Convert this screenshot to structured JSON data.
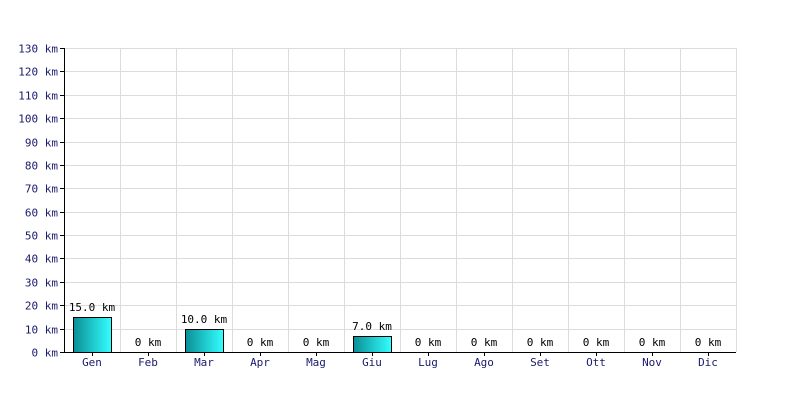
{
  "chart_data": {
    "type": "bar",
    "title": "",
    "xlabel": "",
    "ylabel": "",
    "unit": "km",
    "categories": [
      "Gen",
      "Feb",
      "Mar",
      "Apr",
      "Mag",
      "Giu",
      "Lug",
      "Ago",
      "Set",
      "Ott",
      "Nov",
      "Dic"
    ],
    "values": [
      15.0,
      0,
      10.0,
      0,
      0,
      7.0,
      0,
      0,
      0,
      0,
      0,
      0
    ],
    "data_labels": [
      "15.0 km",
      "0 km",
      "10.0 km",
      "0 km",
      "0 km",
      "7.0 km",
      "0 km",
      "0 km",
      "0 km",
      "0 km",
      "0 km",
      "0 km"
    ],
    "y_ticks": [
      0,
      10,
      20,
      30,
      40,
      50,
      60,
      70,
      80,
      90,
      100,
      110,
      120,
      130
    ],
    "y_tick_labels": [
      "0 km",
      "10 km",
      "20 km",
      "30 km",
      "40 km",
      "50 km",
      "60 km",
      "70 km",
      "80 km",
      "90 km",
      "100 km",
      "110 km",
      "120 km",
      "130 km"
    ],
    "ylim": [
      0,
      130
    ],
    "grid": true,
    "legend": "none",
    "colors": {
      "bar_dark": "#0a8f96",
      "bar_light": "#33ffff",
      "grid": "#dcdcdc",
      "tick_text": "#1a1a6e"
    }
  }
}
